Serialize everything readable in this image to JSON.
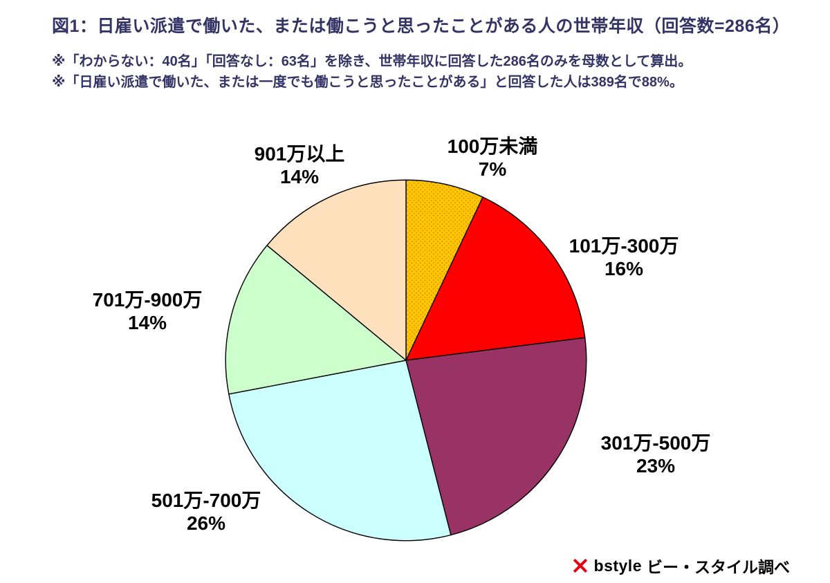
{
  "header": {
    "title": "図1：日雇い派遣で働いた、または働こうと思ったことがある人の世帯年収（回答数=286名）",
    "notes": [
      "※「わからない：40名」「回答なし：63名」を除き、世帯年収に回答した286名のみを母数として算出。",
      "※「日雇い派遣で働いた、または一度でも働こうと思ったことがある」と回答した人は389名で88%。"
    ]
  },
  "chart_data": {
    "type": "pie",
    "title": "日雇い派遣で働いた、または働こうと思ったことがある人の世帯年収",
    "respondents": 286,
    "start_angle_deg": 0,
    "direction": "clockwise",
    "legend_position": "around",
    "slices": [
      {
        "label": "100万未満",
        "value": 7,
        "pct_label": "7%",
        "color": "#FFC800",
        "pattern": "dots",
        "pattern_color": "#D98C00"
      },
      {
        "label": "101万-300万",
        "value": 16,
        "pct_label": "16%",
        "color": "#FF0000"
      },
      {
        "label": "301万-500万",
        "value": 23,
        "pct_label": "23%",
        "color": "#993366"
      },
      {
        "label": "501万-700万",
        "value": 26,
        "pct_label": "26%",
        "color": "#CCFFFF"
      },
      {
        "label": "701万-900万",
        "value": 14,
        "pct_label": "14%",
        "color": "#CCFFCC"
      },
      {
        "label": "901万以上",
        "value": 14,
        "pct_label": "14%",
        "color": "#FFE1BE"
      }
    ]
  },
  "footer": {
    "brand": "bstyle",
    "source": "ビー・スタイル調べ",
    "logo": "bstyle-pinwheel-icon",
    "logo_color": "#E60012"
  }
}
